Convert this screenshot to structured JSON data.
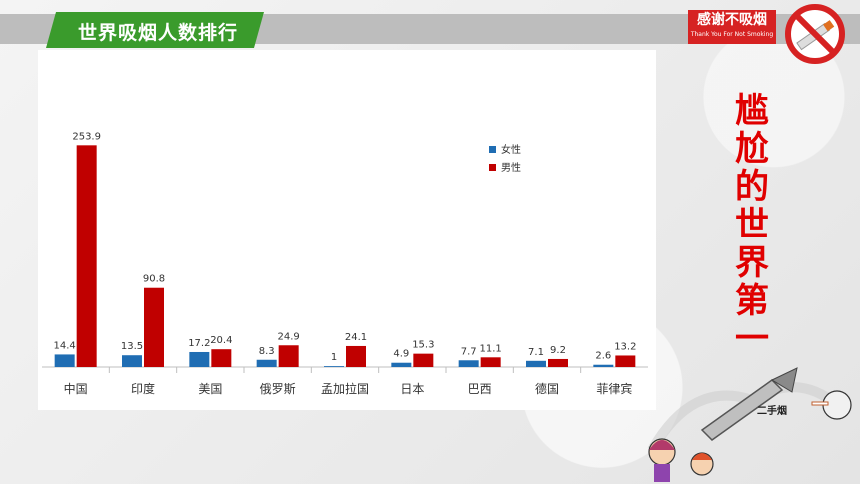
{
  "header": {
    "title": "世界吸烟人数排行",
    "badge_main": "感谢不吸烟",
    "badge_sub": "Thank You For Not Smoking"
  },
  "side": {
    "vertical_text": "尴尬的世界第一",
    "cartoon_label": "二手烟"
  },
  "colors": {
    "female": "#1f6db3",
    "male": "#c00000",
    "banner": "#3a9b2c",
    "badge": "#d62222"
  },
  "icons": {
    "no_smoking": "no-smoking-icon"
  },
  "chart_data": {
    "type": "bar",
    "categories": [
      "中国",
      "印度",
      "美国",
      "俄罗斯",
      "孟加拉国",
      "日本",
      "巴西",
      "德国",
      "菲律宾"
    ],
    "series": [
      {
        "name": "女性",
        "values": [
          14.4,
          13.5,
          17.2,
          8.3,
          1,
          4.9,
          7.7,
          7.1,
          2.6
        ]
      },
      {
        "name": "男性",
        "values": [
          253.9,
          90.8,
          20.4,
          24.9,
          24.1,
          15.3,
          11.1,
          9.2,
          13.2
        ]
      }
    ],
    "ylim": [
      0,
      260
    ],
    "legend": "top-right",
    "grid": false,
    "data_labels": true
  }
}
